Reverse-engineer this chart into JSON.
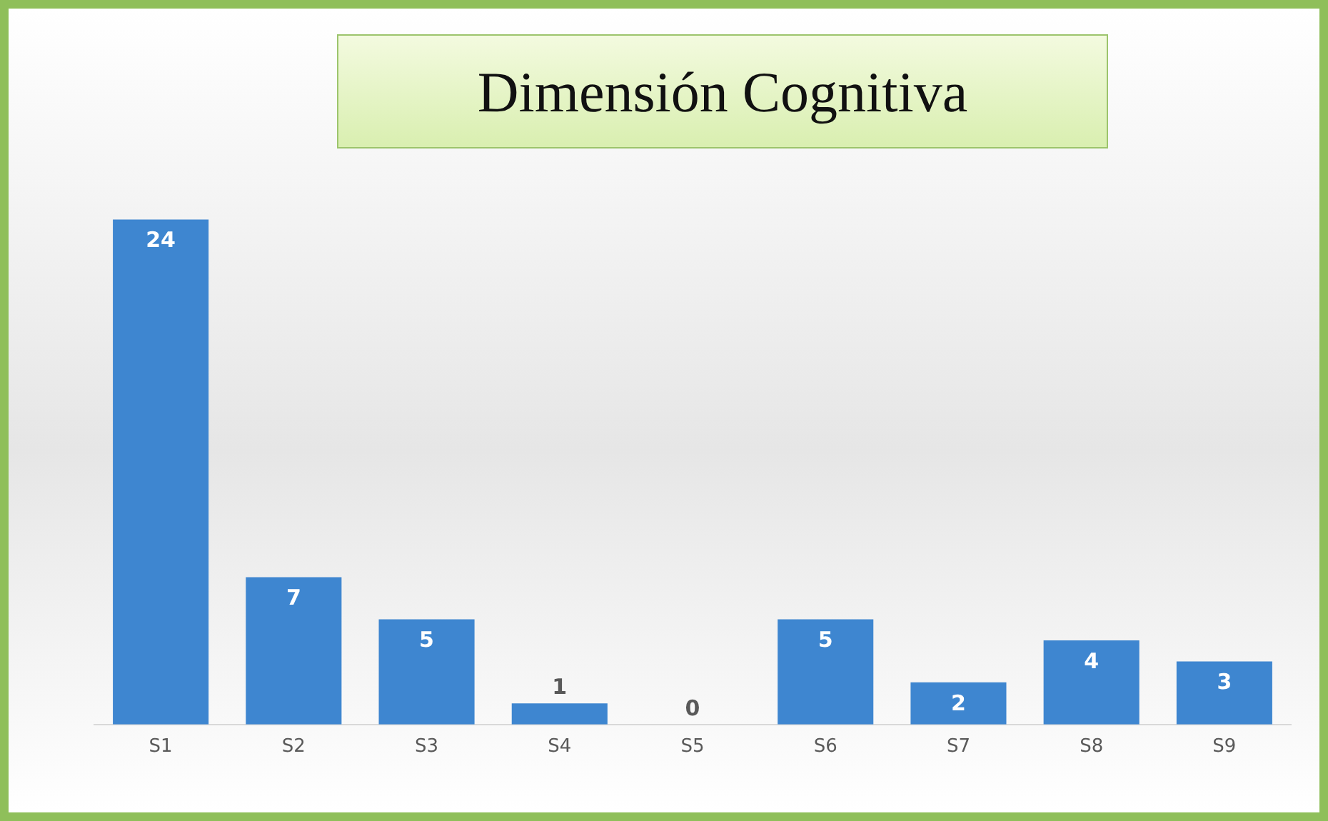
{
  "chart_data": {
    "type": "bar",
    "title": "Dimensión Cognitiva",
    "categories": [
      "S1",
      "S2",
      "S3",
      "S4",
      "S5",
      "S6",
      "S7",
      "S8",
      "S9"
    ],
    "values": [
      24,
      7,
      5,
      1,
      0,
      5,
      2,
      4,
      3
    ],
    "color": "#3e86d0",
    "data_labels": true,
    "grid": false,
    "legend": false
  }
}
